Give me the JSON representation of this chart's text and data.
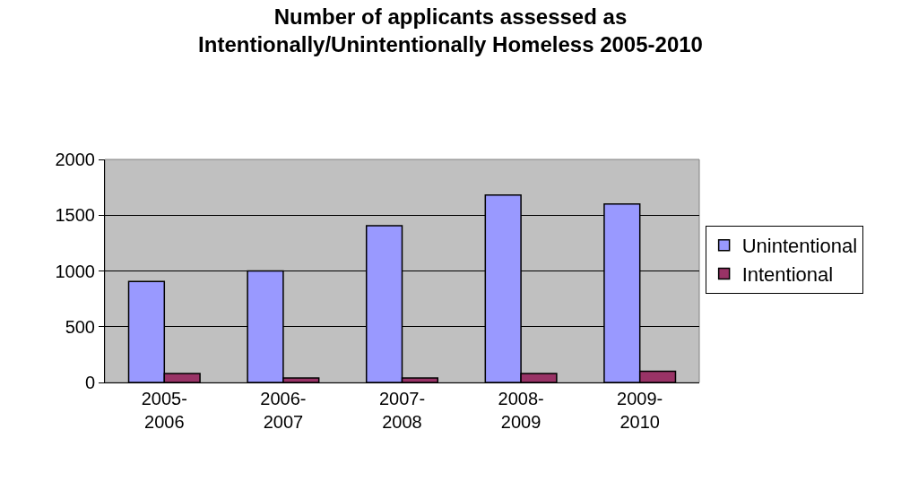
{
  "chart_data": {
    "type": "bar",
    "title": "Number of applicants assessed as\nIntentionally/Unintentionally Homeless 2005-2010",
    "categories": [
      "2005-2006",
      "2006-2007",
      "2007-2008",
      "2008-2009",
      "2009-2010"
    ],
    "series": [
      {
        "name": "Unintentional",
        "color": "#9999ff",
        "values": [
          905,
          1000,
          1405,
          1680,
          1600
        ]
      },
      {
        "name": "Intentional",
        "color": "#993366",
        "values": [
          80,
          40,
          40,
          80,
          100
        ]
      }
    ],
    "ylim": [
      0,
      2000
    ],
    "yticks": [
      0,
      500,
      1000,
      1500,
      2000
    ],
    "grid": "y",
    "legend": "right"
  }
}
